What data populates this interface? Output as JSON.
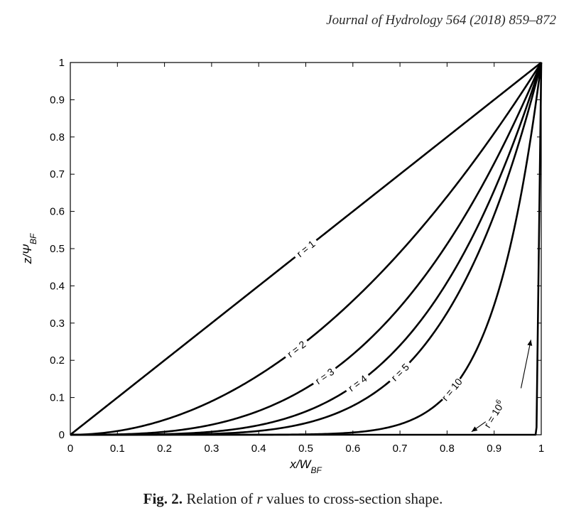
{
  "header": {
    "journal_ref": "Journal of Hydrology 564 (2018) 859–872"
  },
  "caption": {
    "fig_label": "Fig. 2.",
    "text_before": " Relation of ",
    "var": "r",
    "text_after": " values to cross-section shape."
  },
  "chart_data": {
    "type": "line",
    "title": "",
    "xlabel": {
      "main": "x/W",
      "sub": "BF"
    },
    "ylabel": {
      "main": "z/Ψ",
      "sub": "BF"
    },
    "xlim": [
      0,
      1
    ],
    "ylim": [
      0,
      1
    ],
    "xticks": [
      0,
      0.1,
      0.2,
      0.3,
      0.4,
      0.5,
      0.6,
      0.7,
      0.8,
      0.9,
      1
    ],
    "xtick_labels": [
      "0",
      "0.1",
      "0.2",
      "0.3",
      "0.4",
      "0.5",
      "0.6",
      "0.7",
      "0.8",
      "0.9",
      "1"
    ],
    "yticks": [
      0,
      0.1,
      0.2,
      0.3,
      0.4,
      0.5,
      0.6,
      0.7,
      0.8,
      0.9,
      1
    ],
    "ytick_labels": [
      "0",
      "0.1",
      "0.2",
      "0.3",
      "0.4",
      "0.5",
      "0.6",
      "0.7",
      "0.8",
      "0.9",
      "1"
    ],
    "grid": false,
    "relation": "z = x^r",
    "series": [
      {
        "label": "r = 1",
        "r": 1,
        "label_at": 0.5
      },
      {
        "label": "r = 2",
        "label_at": 0.48,
        "r": 2
      },
      {
        "label": "r = 3",
        "label_at": 0.54,
        "r": 3
      },
      {
        "label": "r = 4",
        "label_at": 0.61,
        "r": 4
      },
      {
        "label": "r = 5",
        "label_at": 0.7,
        "r": 5
      },
      {
        "label": "r = 10",
        "label_at": 0.81,
        "r": 10
      },
      {
        "label_base": "r = 10",
        "label_exp": "6",
        "r": 1000000
      }
    ]
  }
}
